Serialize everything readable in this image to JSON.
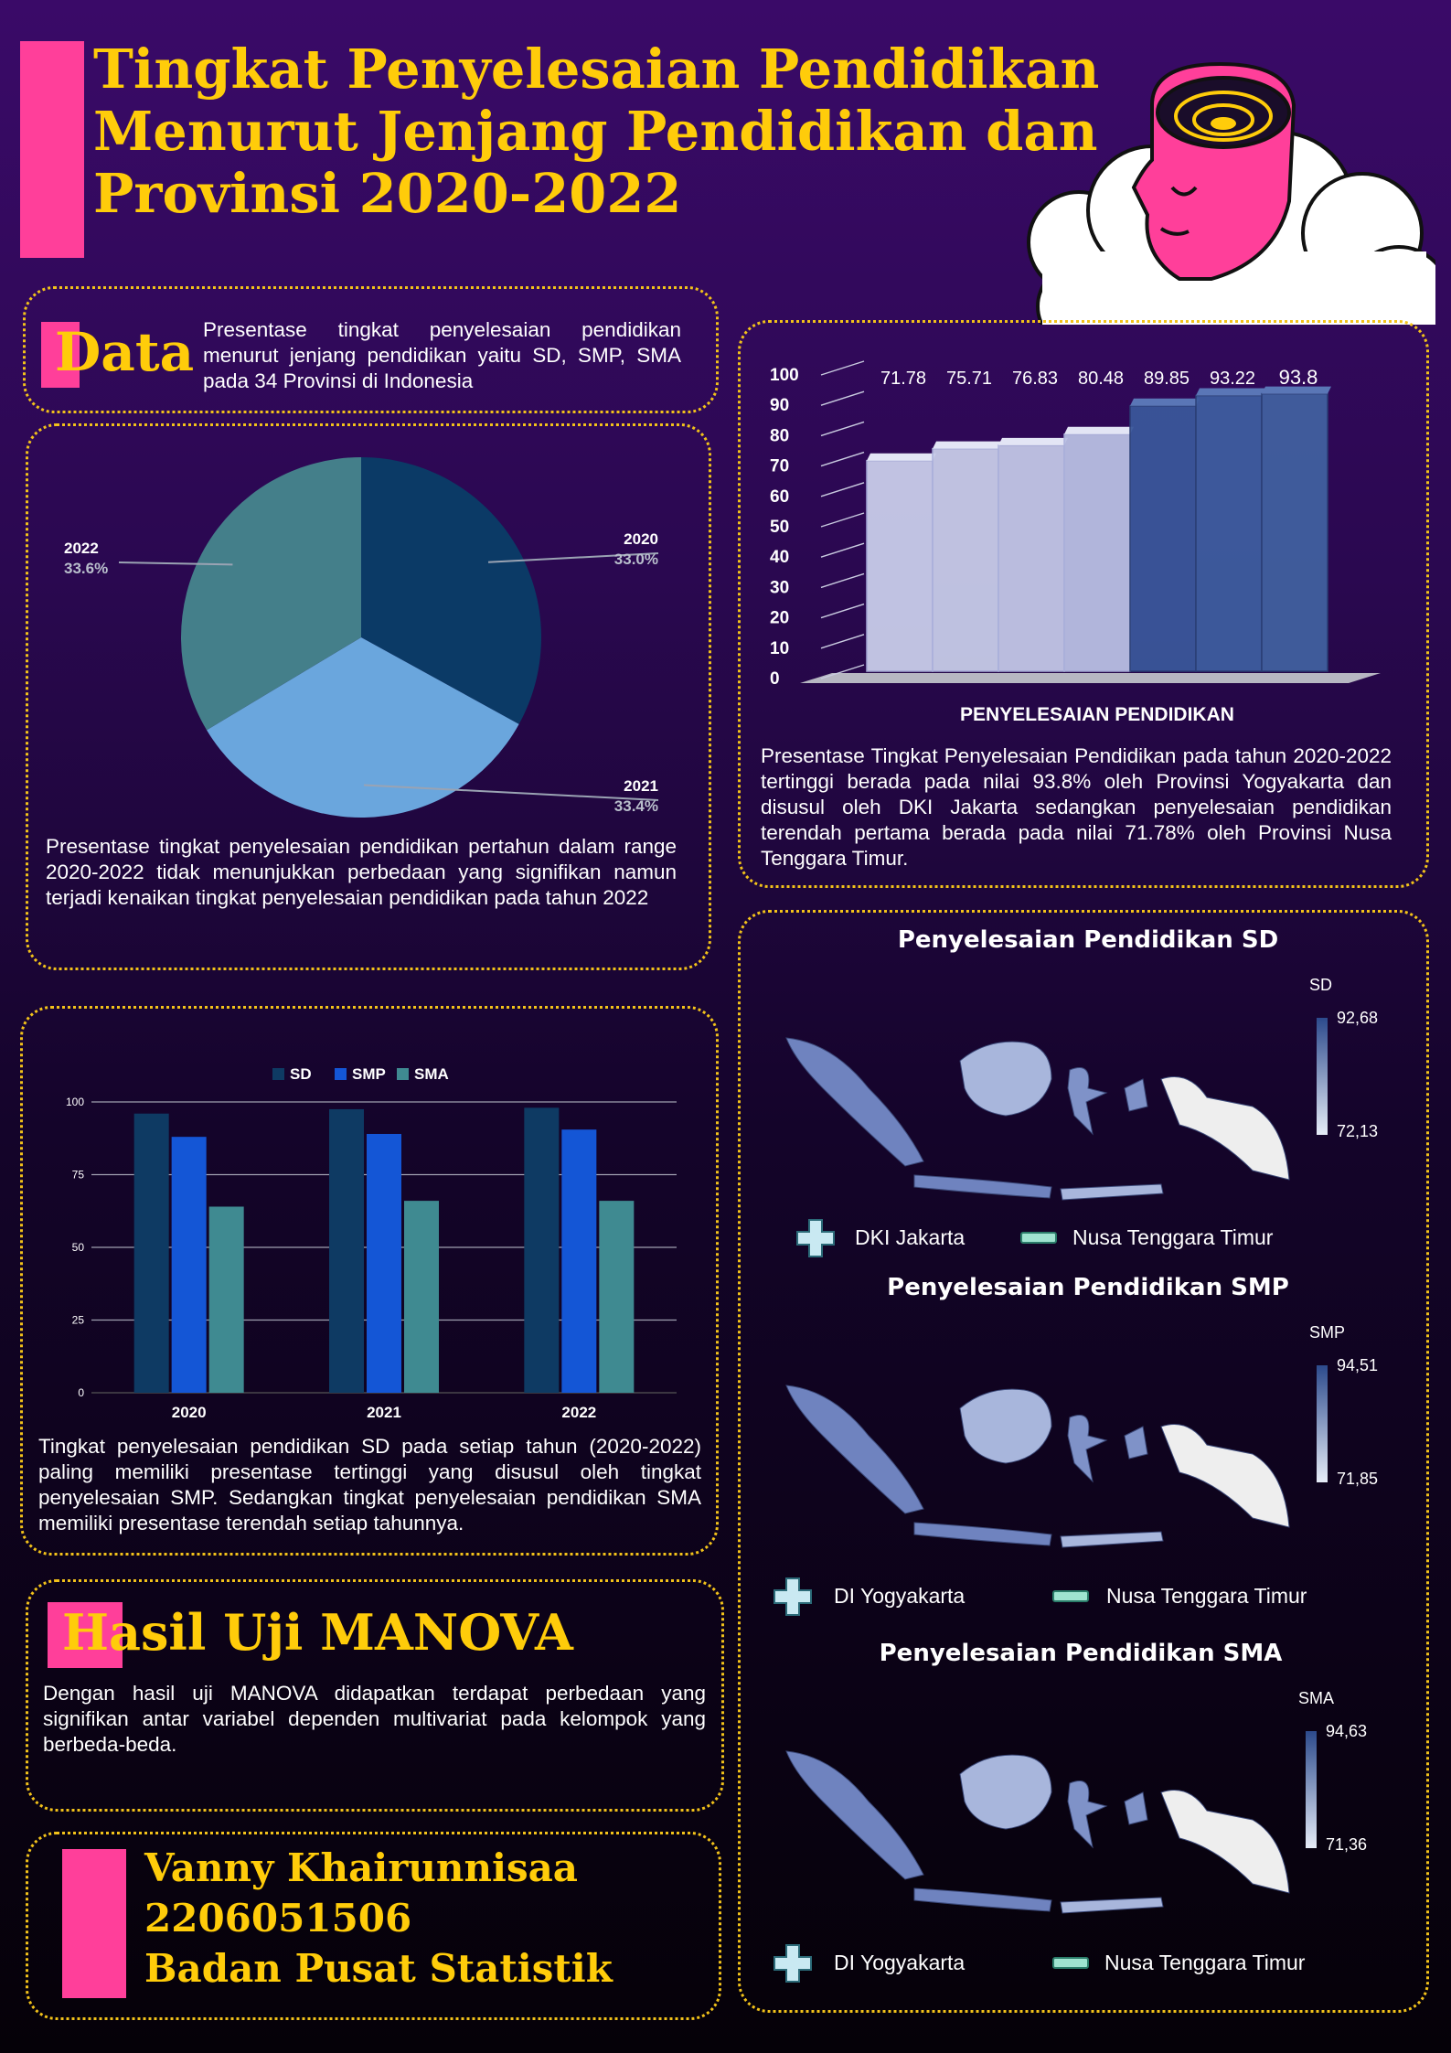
{
  "title": {
    "line1": "Tingkat Penyelesaian Pendidikan",
    "line2": "Menurut Jenjang Pendidikan dan",
    "line3": "Provinsi 2020-2022"
  },
  "data_section": {
    "heading": "Data",
    "text": "Presentase tingkat penyelesaian pendidikan menurut jenjang pendidikan yaitu SD, SMP, SMA pada 34 Provinsi di Indonesia"
  },
  "pie_section": {
    "text": "Presentase tingkat penyelesaian pendidikan pertahun dalam range 2020-2022 tidak menunjukkan perbedaan yang signifikan namun terjadi kenaikan tingkat penyelesaian pendidikan pada tahun 2022"
  },
  "bar3d_section": {
    "text": "Presentase Tingkat Penyelesaian Pendidikan pada tahun 2020-2022 tertinggi berada pada nilai 93.8% oleh Provinsi Yogyakarta dan disusul oleh DKI Jakarta sedangkan penyelesaian pendidikan terendah pertama berada pada nilai 71.78% oleh Provinsi Nusa Tenggara Timur."
  },
  "grouped_section": {
    "text": "Tingkat penyelesaian pendidikan SD pada setiap tahun (2020-2022) paling memiliki presentase tertinggi yang disusul oleh tingkat penyelesaian SMP. Sedangkan tingkat penyelesaian pendidikan SMA memiliki presentase terendah setiap tahunnya."
  },
  "manova": {
    "heading": "Hasil Uji MANOVA",
    "text": "Dengan hasil uji MANOVA didapatkan terdapat perbedaan yang signifikan antar variabel dependen multivariat pada kelompok yang berbeda-beda."
  },
  "credits": {
    "name": "Vanny Khairunnisaa",
    "id": "2206051506",
    "org": "Badan Pusat Statistik"
  },
  "maps": [
    {
      "title": "Penyelesaian Pendidikan SD",
      "scale_label": "SD",
      "max": "92,68",
      "min": "72,13",
      "highest": "DKI Jakarta",
      "lowest": "Nusa Tenggara Timur"
    },
    {
      "title": "Penyelesaian Pendidikan SMP",
      "scale_label": "SMP",
      "max": "94,51",
      "min": "71,85",
      "highest": "DI Yogyakarta",
      "lowest": "Nusa Tenggara Timur"
    },
    {
      "title": "Penyelesaian Pendidikan SMA",
      "scale_label": "SMA",
      "max": "94,63",
      "min": "71,36",
      "highest": "DI Yogyakarta",
      "lowest": "Nusa Tenggara Timur"
    }
  ],
  "colors": {
    "pink": "#ff3f9a",
    "yellow": "#ffcc0a",
    "sd": "#0e3a63",
    "smp": "#1456d6",
    "sma": "#3f8a91",
    "pie_2020": "#0b3a66",
    "pie_2021": "#6aa6dd",
    "pie_2022": "#447f8a"
  },
  "chart_data": [
    {
      "type": "pie",
      "title": "",
      "slices": [
        {
          "label": "2020",
          "value": 33.0,
          "display": "33.0%"
        },
        {
          "label": "2021",
          "value": 33.4,
          "display": "33.4%"
        },
        {
          "label": "2022",
          "value": 33.6,
          "display": "33.6%"
        }
      ]
    },
    {
      "type": "bar",
      "title": "",
      "xlabel": "PENYELESAIAN PENDIDIKAN",
      "values": [
        71.78,
        75.71,
        76.83,
        80.48,
        89.85,
        93.22,
        93.8
      ],
      "yticks": [
        0,
        10,
        20,
        30,
        40,
        50,
        60,
        70,
        80,
        90,
        100
      ],
      "ylim": [
        0,
        100
      ]
    },
    {
      "type": "bar",
      "title": "",
      "categories": [
        "2020",
        "2021",
        "2022"
      ],
      "series": [
        {
          "name": "SD",
          "values": [
            96,
            97.5,
            98
          ]
        },
        {
          "name": "SMP",
          "values": [
            88,
            89,
            90.5
          ]
        },
        {
          "name": "SMA",
          "values": [
            64,
            66,
            66
          ]
        }
      ],
      "yticks": [
        0,
        25,
        50,
        75,
        100
      ],
      "ylim": [
        0,
        100
      ],
      "grid": true,
      "legend": "top"
    }
  ]
}
